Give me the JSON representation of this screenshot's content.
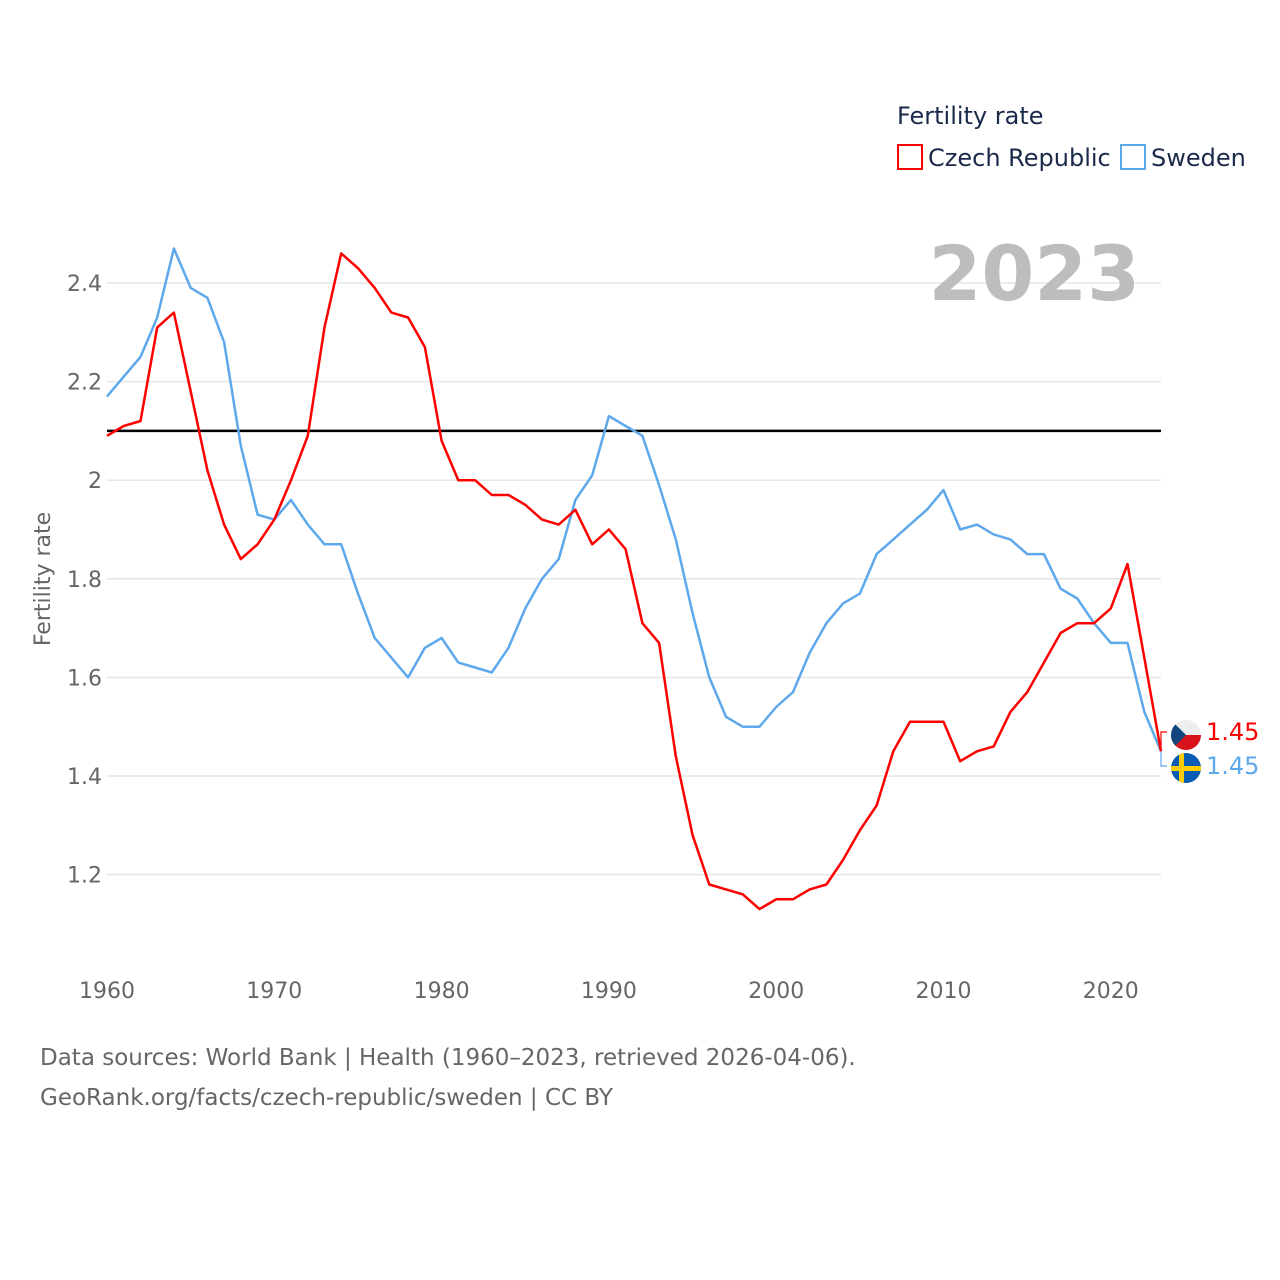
{
  "chart_data": {
    "type": "line",
    "title": "",
    "year_label": "2023",
    "ylabel": "Fertility rate",
    "xlabel": "",
    "legend": {
      "title": "Fertility rate",
      "position": "top-right"
    },
    "xlim": [
      1960,
      2023
    ],
    "ylim": [
      1.06,
      2.5
    ],
    "x_ticks": [
      "1960",
      "1970",
      "1980",
      "1990",
      "2000",
      "2010",
      "2020"
    ],
    "y_ticks": [
      "1.2",
      "1.4",
      "1.6",
      "1.8",
      "2",
      "2.2",
      "2.4"
    ],
    "grid": true,
    "reference_line": 2.1,
    "x": [
      1960,
      1961,
      1962,
      1963,
      1964,
      1965,
      1966,
      1967,
      1968,
      1969,
      1970,
      1971,
      1972,
      1973,
      1974,
      1975,
      1976,
      1977,
      1978,
      1979,
      1980,
      1981,
      1982,
      1983,
      1984,
      1985,
      1986,
      1987,
      1988,
      1989,
      1990,
      1991,
      1992,
      1993,
      1994,
      1995,
      1996,
      1997,
      1998,
      1999,
      2000,
      2001,
      2002,
      2003,
      2004,
      2005,
      2006,
      2007,
      2008,
      2009,
      2010,
      2011,
      2012,
      2013,
      2014,
      2015,
      2016,
      2017,
      2018,
      2019,
      2020,
      2021,
      2022,
      2023
    ],
    "series": [
      {
        "name": "Czech Republic",
        "color": "#ff0000",
        "end_label": "1.45",
        "values": [
          2.09,
          2.11,
          2.12,
          2.31,
          2.34,
          2.18,
          2.02,
          1.91,
          1.84,
          1.87,
          1.92,
          2.0,
          2.09,
          2.31,
          2.46,
          2.43,
          2.39,
          2.34,
          2.33,
          2.27,
          2.08,
          2.0,
          2.0,
          1.97,
          1.97,
          1.95,
          1.92,
          1.91,
          1.94,
          1.87,
          1.9,
          1.86,
          1.71,
          1.67,
          1.44,
          1.28,
          1.18,
          1.17,
          1.16,
          1.13,
          1.15,
          1.15,
          1.17,
          1.18,
          1.23,
          1.29,
          1.34,
          1.45,
          1.51,
          1.51,
          1.51,
          1.43,
          1.45,
          1.46,
          1.53,
          1.57,
          1.63,
          1.69,
          1.71,
          1.71,
          1.74,
          1.83,
          1.64,
          1.45
        ]
      },
      {
        "name": "Sweden",
        "color": "#5ea8ec",
        "end_label": "1.45",
        "values": [
          2.17,
          2.21,
          2.25,
          2.33,
          2.47,
          2.39,
          2.37,
          2.28,
          2.07,
          1.93,
          1.92,
          1.96,
          1.91,
          1.87,
          1.87,
          1.77,
          1.68,
          1.64,
          1.6,
          1.66,
          1.68,
          1.63,
          1.62,
          1.61,
          1.66,
          1.74,
          1.8,
          1.84,
          1.96,
          2.01,
          2.13,
          2.11,
          2.09,
          1.99,
          1.88,
          1.73,
          1.6,
          1.52,
          1.5,
          1.5,
          1.54,
          1.57,
          1.65,
          1.71,
          1.75,
          1.77,
          1.85,
          1.88,
          1.91,
          1.94,
          1.98,
          1.9,
          1.91,
          1.89,
          1.88,
          1.85,
          1.85,
          1.78,
          1.76,
          1.71,
          1.67,
          1.67,
          1.53,
          1.45
        ]
      }
    ]
  },
  "footer": {
    "line1": "Data sources: World Bank | Health (1960–2023, retrieved 2026-04-06).",
    "line2": "GeoRank.org/facts/czech-republic/sweden | CC BY"
  }
}
